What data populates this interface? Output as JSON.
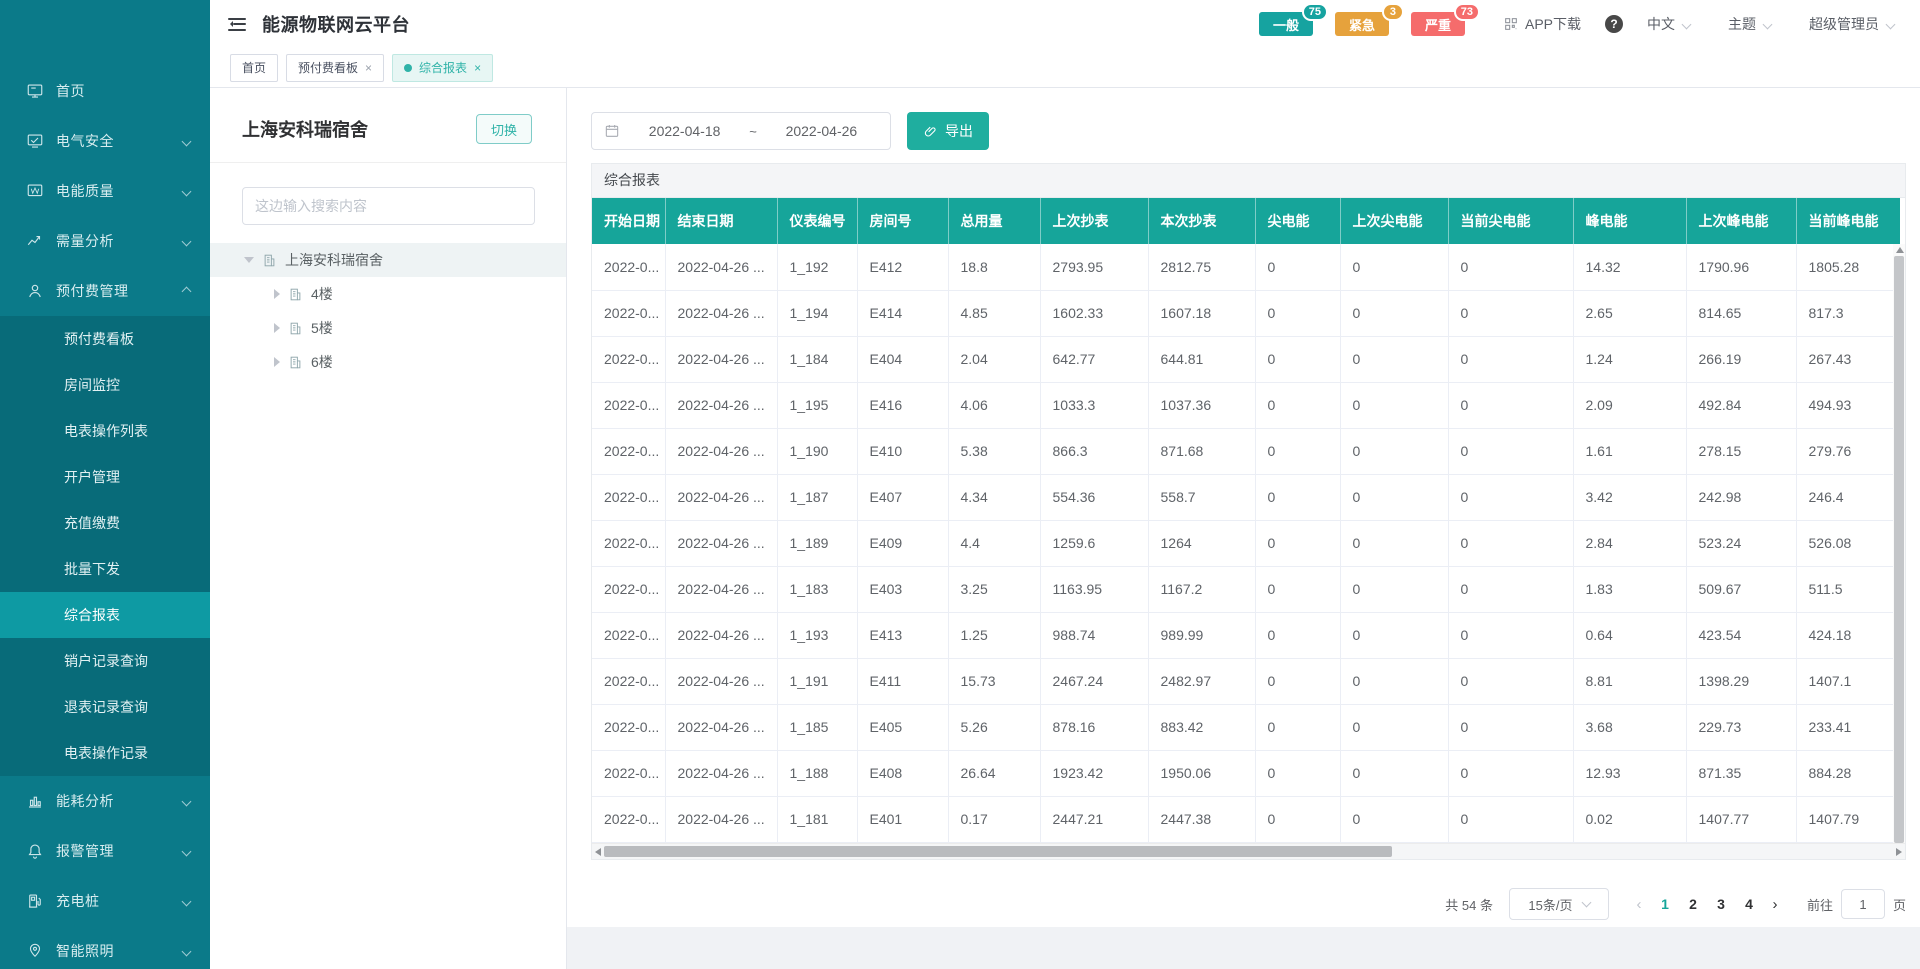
{
  "app": {
    "title": "能源物联网云平台"
  },
  "header": {
    "badges": [
      {
        "label": "一般",
        "count": "75"
      },
      {
        "label": "紧急",
        "count": "3"
      },
      {
        "label": "严重",
        "count": "73"
      }
    ],
    "app_download": "APP下载",
    "help": "?",
    "language": "中文",
    "theme": "主题",
    "user": "超级管理员"
  },
  "tabs": [
    {
      "label": "首页"
    },
    {
      "label": "预付费看板"
    },
    {
      "label": "综合报表"
    }
  ],
  "sidebar": {
    "items": [
      {
        "label": "首页"
      },
      {
        "label": "电气安全"
      },
      {
        "label": "电能质量"
      },
      {
        "label": "需量分析"
      },
      {
        "label": "预付费管理"
      },
      {
        "label": "能耗分析"
      },
      {
        "label": "报警管理"
      },
      {
        "label": "充电桩"
      },
      {
        "label": "智能照明"
      }
    ],
    "submenu": [
      {
        "label": "预付费看板"
      },
      {
        "label": "房间监控"
      },
      {
        "label": "电表操作列表"
      },
      {
        "label": "开户管理"
      },
      {
        "label": "充值缴费"
      },
      {
        "label": "批量下发"
      },
      {
        "label": "综合报表"
      },
      {
        "label": "销户记录查询"
      },
      {
        "label": "退表记录查询"
      },
      {
        "label": "电表操作记录"
      }
    ]
  },
  "panel": {
    "title": "上海安科瑞宿舍",
    "switch_label": "切换",
    "search_placeholder": "这边输入搜索内容",
    "tree": {
      "root": "上海安科瑞宿舍",
      "children": [
        "4楼",
        "5楼",
        "6楼"
      ]
    }
  },
  "toolbar": {
    "date_start": "2022-04-18",
    "date_separator": "~",
    "date_end": "2022-04-26",
    "export_label": "导出"
  },
  "report": {
    "title": "综合报表",
    "columns": [
      "开始日期",
      "结束日期",
      "仪表编号",
      "房间号",
      "总用量",
      "上次抄表",
      "本次抄表",
      "尖电能",
      "上次尖电能",
      "当前尖电能",
      "峰电能",
      "上次峰电能",
      "当前峰电能"
    ],
    "rows": [
      [
        "2022-0...",
        "2022-04-26 ...",
        "1_192",
        "E412",
        "18.8",
        "2793.95",
        "2812.75",
        "0",
        "0",
        "0",
        "14.32",
        "1790.96",
        "1805.28"
      ],
      [
        "2022-0...",
        "2022-04-26 ...",
        "1_194",
        "E414",
        "4.85",
        "1602.33",
        "1607.18",
        "0",
        "0",
        "0",
        "2.65",
        "814.65",
        "817.3"
      ],
      [
        "2022-0...",
        "2022-04-26 ...",
        "1_184",
        "E404",
        "2.04",
        "642.77",
        "644.81",
        "0",
        "0",
        "0",
        "1.24",
        "266.19",
        "267.43"
      ],
      [
        "2022-0...",
        "2022-04-26 ...",
        "1_195",
        "E416",
        "4.06",
        "1033.3",
        "1037.36",
        "0",
        "0",
        "0",
        "2.09",
        "492.84",
        "494.93"
      ],
      [
        "2022-0...",
        "2022-04-26 ...",
        "1_190",
        "E410",
        "5.38",
        "866.3",
        "871.68",
        "0",
        "0",
        "0",
        "1.61",
        "278.15",
        "279.76"
      ],
      [
        "2022-0...",
        "2022-04-26 ...",
        "1_187",
        "E407",
        "4.34",
        "554.36",
        "558.7",
        "0",
        "0",
        "0",
        "3.42",
        "242.98",
        "246.4"
      ],
      [
        "2022-0...",
        "2022-04-26 ...",
        "1_189",
        "E409",
        "4.4",
        "1259.6",
        "1264",
        "0",
        "0",
        "0",
        "2.84",
        "523.24",
        "526.08"
      ],
      [
        "2022-0...",
        "2022-04-26 ...",
        "1_183",
        "E403",
        "3.25",
        "1163.95",
        "1167.2",
        "0",
        "0",
        "0",
        "1.83",
        "509.67",
        "511.5"
      ],
      [
        "2022-0...",
        "2022-04-26 ...",
        "1_193",
        "E413",
        "1.25",
        "988.74",
        "989.99",
        "0",
        "0",
        "0",
        "0.64",
        "423.54",
        "424.18"
      ],
      [
        "2022-0...",
        "2022-04-26 ...",
        "1_191",
        "E411",
        "15.73",
        "2467.24",
        "2482.97",
        "0",
        "0",
        "0",
        "8.81",
        "1398.29",
        "1407.1"
      ],
      [
        "2022-0...",
        "2022-04-26 ...",
        "1_185",
        "E405",
        "5.26",
        "878.16",
        "883.42",
        "0",
        "0",
        "0",
        "3.68",
        "229.73",
        "233.41"
      ],
      [
        "2022-0...",
        "2022-04-26 ...",
        "1_188",
        "E408",
        "26.64",
        "1923.42",
        "1950.06",
        "0",
        "0",
        "0",
        "12.93",
        "871.35",
        "884.28"
      ],
      [
        "2022-0...",
        "2022-04-26 ...",
        "1_181",
        "E401",
        "0.17",
        "2447.21",
        "2447.38",
        "0",
        "0",
        "0",
        "0.02",
        "1407.77",
        "1407.79"
      ]
    ],
    "pagination": {
      "total": "共 54 条",
      "page_size": "15条/页",
      "pages": [
        "1",
        "2",
        "3",
        "4"
      ],
      "active_page": "1",
      "goto_label": "前往",
      "goto_value": "1",
      "page_unit": "页"
    }
  },
  "colors": {
    "sidebar": "#0b7a89",
    "primary": "#16a59a",
    "warning": "#e6a23c",
    "danger": "#f56c6c"
  }
}
